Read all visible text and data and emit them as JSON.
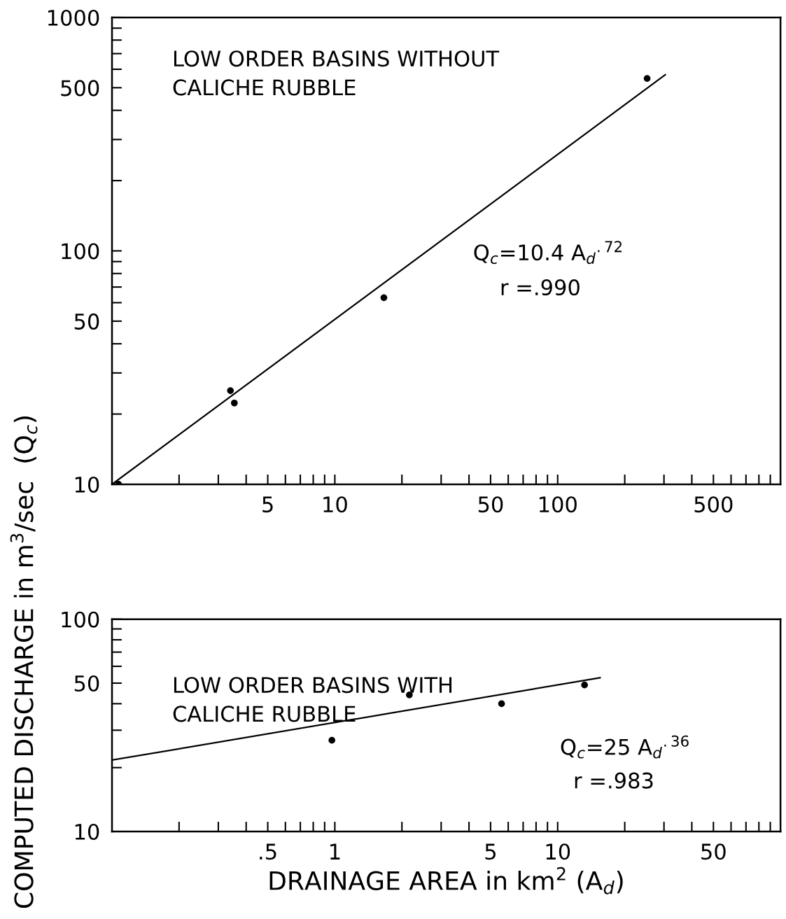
{
  "chart_data": [
    {
      "type": "scatter",
      "ylabel": "COMPUTED DISCHARGE in m$^{3}$/sec  (Q$_{c}$)",
      "log": "xy",
      "grid": false,
      "legend": false,
      "marker": "circle",
      "annotations": [
        "LOW ORDER BASINS WITHOUT\nCALICHE RUBBLE",
        "Q$_{c}$=10.4 A$_{d}$$^{.72}$",
        "r =.990"
      ],
      "xlim": [
        1,
        1000
      ],
      "ylim": [
        10,
        1000
      ],
      "xticks": [
        {
          "value": 2,
          "label": null
        },
        {
          "value": 3,
          "label": null
        },
        {
          "value": 4,
          "label": null
        },
        {
          "value": 5,
          "label": "5"
        },
        {
          "value": 6,
          "label": null
        },
        {
          "value": 7,
          "label": null
        },
        {
          "value": 8,
          "label": null
        },
        {
          "value": 9,
          "label": null
        },
        {
          "value": 10,
          "label": "10"
        },
        {
          "value": 20,
          "label": null
        },
        {
          "value": 30,
          "label": null
        },
        {
          "value": 40,
          "label": null
        },
        {
          "value": 50,
          "label": "50"
        },
        {
          "value": 60,
          "label": null
        },
        {
          "value": 70,
          "label": null
        },
        {
          "value": 80,
          "label": null
        },
        {
          "value": 90,
          "label": null
        },
        {
          "value": 100,
          "label": "100"
        },
        {
          "value": 200,
          "label": null
        },
        {
          "value": 300,
          "label": null
        },
        {
          "value": 400,
          "label": null
        },
        {
          "value": 500,
          "label": "500"
        },
        {
          "value": 600,
          "label": null
        },
        {
          "value": 700,
          "label": null
        },
        {
          "value": 800,
          "label": null
        },
        {
          "value": 900,
          "label": null
        }
      ],
      "yticks": [
        10,
        {
          "value": 20,
          "label": null
        },
        {
          "value": 30,
          "label": null
        },
        {
          "value": 40,
          "label": null
        },
        50,
        {
          "value": 60,
          "label": null
        },
        {
          "value": 70,
          "label": null
        },
        {
          "value": 80,
          "label": null
        },
        {
          "value": 90,
          "label": null
        },
        100,
        {
          "value": 200,
          "label": null
        },
        {
          "value": 300,
          "label": null
        },
        {
          "value": 400,
          "label": null
        },
        500,
        {
          "value": 600,
          "label": null
        },
        {
          "value": 700,
          "label": null
        },
        {
          "value": 800,
          "label": null
        },
        {
          "value": 900,
          "label": null
        },
        1000
      ],
      "series": [
        {
          "color": "#000000",
          "x": [
            1.07,
            3.4,
            3.54,
            16.6,
            252
          ],
          "values": [
            10,
            25.2,
            22.3,
            63,
            548
          ]
        },
        {
          "type": "line",
          "color": "#000000",
          "marker": "none",
          "line_style": "solid",
          "x": [
            1,
            304
          ],
          "values": [
            10,
            568
          ]
        }
      ]
    },
    {
      "type": "scatter",
      "xlabel": "DRAINAGE AREA in km$^{2}$ (A$_{d}$)",
      "log": "xy",
      "grid": false,
      "legend": false,
      "marker": "circle",
      "annotations": [
        "LOW ORDER BASINS WITH\nCALICHE RUBBLE",
        "Q$_{c}$=25 A$_{d}$$^{.36}$",
        "r =.983"
      ],
      "xlim": [
        0.1,
        100
      ],
      "ylim": [
        10,
        100
      ],
      "xticks": [
        {
          "value": 0.2,
          "label": null
        },
        {
          "value": 0.3,
          "label": null
        },
        {
          "value": 0.4,
          "label": null
        },
        {
          "value": 0.5,
          "label": ".5"
        },
        {
          "value": 0.6,
          "label": null
        },
        {
          "value": 0.7,
          "label": null
        },
        {
          "value": 0.8,
          "label": null
        },
        {
          "value": 0.9,
          "label": null
        },
        {
          "value": 1,
          "label": "1"
        },
        {
          "value": 2,
          "label": null
        },
        {
          "value": 3,
          "label": null
        },
        {
          "value": 4,
          "label": null
        },
        {
          "value": 5,
          "label": "5"
        },
        {
          "value": 6,
          "label": null
        },
        {
          "value": 7,
          "label": null
        },
        {
          "value": 8,
          "label": null
        },
        {
          "value": 9,
          "label": null
        },
        {
          "value": 10,
          "label": "10"
        },
        {
          "value": 20,
          "label": null
        },
        {
          "value": 30,
          "label": null
        },
        {
          "value": 40,
          "label": null
        },
        {
          "value": 50,
          "label": "50"
        },
        {
          "value": 60,
          "label": null
        },
        {
          "value": 70,
          "label": null
        },
        {
          "value": 80,
          "label": null
        },
        {
          "value": 90,
          "label": null
        }
      ],
      "yticks": [
        10,
        {
          "value": 20,
          "label": null
        },
        {
          "value": 30,
          "label": null
        },
        {
          "value": 40,
          "label": null
        },
        50,
        {
          "value": 60,
          "label": null
        },
        {
          "value": 70,
          "label": null
        },
        {
          "value": 80,
          "label": null
        },
        {
          "value": 90,
          "label": null
        },
        100
      ],
      "series": [
        {
          "color": "#000000",
          "x": [
            0.97,
            2.16,
            5.6,
            13.2
          ],
          "values": [
            26.9,
            44,
            40,
            49
          ]
        },
        {
          "type": "line",
          "color": "#000000",
          "marker": "none",
          "line_style": "solid",
          "x": [
            0.1,
            15.5
          ],
          "values": [
            21.7,
            53
          ]
        }
      ]
    }
  ]
}
